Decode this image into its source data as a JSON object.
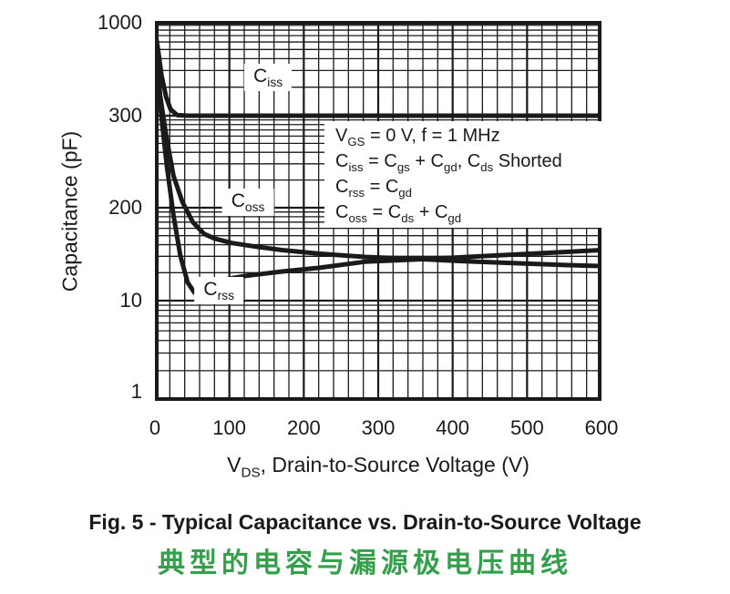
{
  "page": {
    "background": "#ffffff",
    "ink": "#1a1a1a",
    "accent_green": "#35a04c"
  },
  "chart_data": {
    "type": "line",
    "title": "Fig. 5 - Typical Capacitance vs. Drain-to-Source Voltage",
    "title_cn": "典型的电容与漏源极电压曲线",
    "xlabel_segments": [
      "V",
      "_DS",
      ", Drain-to-Source Voltage (V)"
    ],
    "ylabel": "Capacitance (pF)",
    "xlim": [
      0,
      600
    ],
    "x_ticks": [
      0,
      100,
      200,
      300,
      400,
      500,
      600
    ],
    "x_minor_step_v": 20,
    "y_scale": "log-style grid of four decade-pattern bands, as printed",
    "y_tick_labels": [
      "1000",
      "300",
      "200",
      "10",
      "1"
    ],
    "y_band_edges": [
      1000,
      300,
      200,
      10,
      1
    ],
    "grid": true,
    "legend": "inline-curve-labels",
    "annotation_lines": [
      [
        "V",
        "_GS",
        " = 0 V, f = 1 MHz"
      ],
      [
        "C",
        "_iss",
        " = C",
        "_gs",
        " + C",
        "_gd",
        ", C",
        "_ds",
        " Shorted"
      ],
      [
        "C",
        "_rss",
        " = C",
        "_gd"
      ],
      [
        "C",
        "_oss",
        " = C",
        "_ds",
        " + C",
        "_gd"
      ]
    ],
    "series": [
      {
        "id": "ciss",
        "label_segments": [
          "C",
          "_iss"
        ],
        "label_anchor": {
          "v": 152,
          "pf": 490
        },
        "points": [
          [
            0,
            900
          ],
          [
            4,
            700
          ],
          [
            9,
            500
          ],
          [
            15,
            380
          ],
          [
            21,
            325
          ],
          [
            30,
            302
          ],
          [
            45,
            300
          ],
          [
            600,
            300
          ]
        ]
      },
      {
        "id": "coss",
        "label_segments": [
          "C",
          "_oss"
        ],
        "label_anchor": {
          "v": 125,
          "pf": 205
        },
        "points": [
          [
            1,
            690
          ],
          [
            7,
            388
          ],
          [
            15,
            275
          ],
          [
            25,
            230
          ],
          [
            37,
            205
          ],
          [
            51,
            125
          ],
          [
            66,
            86
          ],
          [
            80,
            74
          ],
          [
            104,
            64
          ],
          [
            135,
            57
          ],
          [
            171,
            51
          ],
          [
            220,
            45.5
          ],
          [
            282,
            41
          ],
          [
            359,
            38
          ],
          [
            420,
            35.5
          ],
          [
            480,
            33.5
          ],
          [
            550,
            31.5
          ],
          [
            600,
            30.5
          ]
        ]
      },
      {
        "id": "crss",
        "label_segments": [
          "C",
          "_rss"
        ],
        "label_anchor": {
          "v": 86,
          "pf": 14
        },
        "points": [
          [
            2,
            580
          ],
          [
            9,
            297
          ],
          [
            16,
            240
          ],
          [
            25,
            156
          ],
          [
            34,
            43
          ],
          [
            44,
            18
          ],
          [
            53,
            13
          ],
          [
            64,
            15.7
          ],
          [
            86,
            19.2
          ],
          [
            122,
            22.2
          ],
          [
            171,
            25.6
          ],
          [
            220,
            28.8
          ],
          [
            282,
            35
          ],
          [
            359,
            38
          ],
          [
            420,
            41
          ],
          [
            480,
            44
          ],
          [
            550,
            48
          ],
          [
            600,
            51
          ]
        ]
      }
    ]
  }
}
